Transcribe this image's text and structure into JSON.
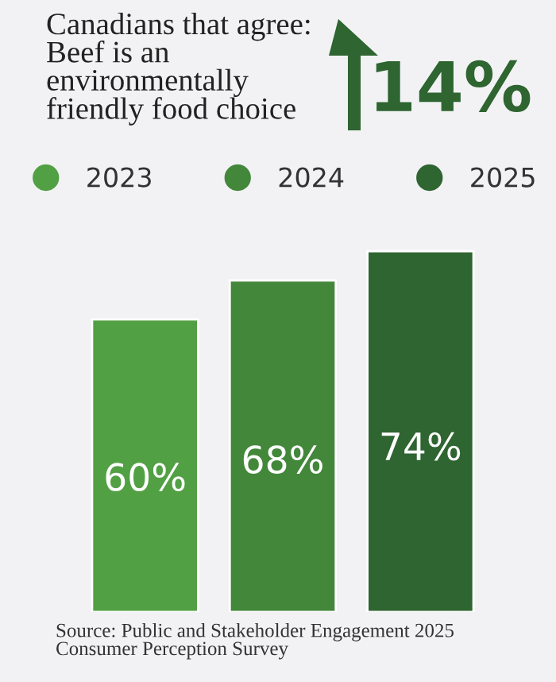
{
  "chart_data": {
    "type": "bar",
    "title": "Canadians that agree:\nBeef is an\nenvironmentally\nfriendly food choice",
    "categories": [
      null
    ],
    "series": [
      {
        "name": "2023",
        "color": "#52a044",
        "values": [
          60
        ],
        "value_labels": [
          "60%"
        ]
      },
      {
        "name": "2024",
        "color": "#43873b",
        "values": [
          68
        ],
        "value_labels": [
          "68%"
        ]
      },
      {
        "name": "2025",
        "color": "#2e6530",
        "values": [
          74
        ],
        "value_labels": [
          "74%"
        ]
      }
    ],
    "legend": "top",
    "annotations": [
      "14%",
      "Source: Public and Stakeholder Engagement 2025\nConsumer Perception Survey"
    ]
  }
}
